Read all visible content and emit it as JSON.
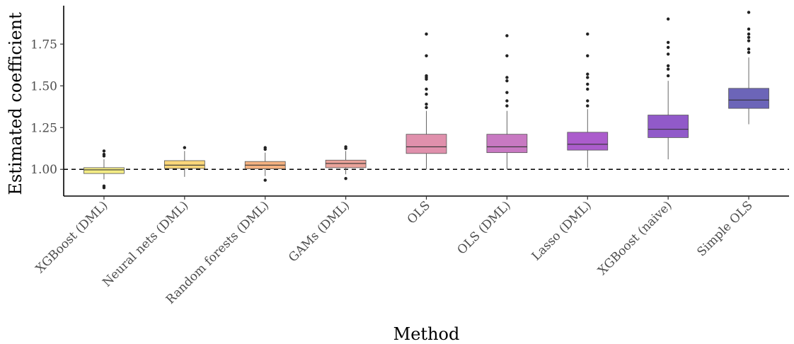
{
  "chart_data": {
    "type": "boxplot",
    "title": "",
    "xlabel": "Method",
    "ylabel": "Estimated coefficient",
    "ylim": [
      0.84,
      1.98
    ],
    "yticks": [
      1.0,
      1.25,
      1.5,
      1.75
    ],
    "ytick_labels": [
      "1.00",
      "1.25",
      "1.50",
      "1.75"
    ],
    "reference_line": 1.0,
    "categories": [
      "XGBoost (DML)",
      "Neural nets (DML)",
      "Random forests (DML)",
      "GAMs (DML)",
      "OLS",
      "OLS (DML)",
      "Lasso (DML)",
      "XGBoost (naive)",
      "Simple OLS"
    ],
    "boxes": [
      {
        "whisker_low": 0.94,
        "q1": 0.975,
        "median": 0.997,
        "q3": 1.01,
        "whisker_high": 1.06,
        "outliers": [
          1.08,
          1.09,
          1.11,
          0.9,
          0.89
        ],
        "color": "#f4ec84"
      },
      {
        "whisker_low": 0.955,
        "q1": 1.005,
        "median": 1.025,
        "q3": 1.052,
        "whisker_high": 1.11,
        "outliers": [
          1.13
        ],
        "color": "#fbd77a"
      },
      {
        "whisker_low": 0.96,
        "q1": 1.003,
        "median": 1.025,
        "q3": 1.047,
        "whisker_high": 1.1,
        "outliers": [
          1.12,
          1.13,
          0.935
        ],
        "color": "#f5b281"
      },
      {
        "whisker_low": 0.97,
        "q1": 1.01,
        "median": 1.035,
        "q3": 1.055,
        "whisker_high": 1.11,
        "outliers": [
          1.125,
          1.135,
          0.945
        ],
        "color": "#eba39a"
      },
      {
        "whisker_low": 1.0,
        "q1": 1.095,
        "median": 1.135,
        "q3": 1.21,
        "whisker_high": 1.35,
        "outliers": [
          1.37,
          1.39,
          1.45,
          1.48,
          1.54,
          1.55,
          1.56,
          1.68,
          1.81
        ],
        "color": "#e090ac"
      },
      {
        "whisker_low": 1.0,
        "q1": 1.1,
        "median": 1.135,
        "q3": 1.21,
        "whisker_high": 1.35,
        "outliers": [
          1.38,
          1.41,
          1.46,
          1.53,
          1.55,
          1.68,
          1.8
        ],
        "color": "#c879c2"
      },
      {
        "whisker_low": 1.01,
        "q1": 1.115,
        "median": 1.15,
        "q3": 1.222,
        "whisker_high": 1.36,
        "outliers": [
          1.38,
          1.41,
          1.48,
          1.51,
          1.55,
          1.57,
          1.68,
          1.81
        ],
        "color": "#ab5ccc"
      },
      {
        "whisker_low": 1.06,
        "q1": 1.19,
        "median": 1.24,
        "q3": 1.325,
        "whisker_high": 1.53,
        "outliers": [
          1.56,
          1.6,
          1.62,
          1.69,
          1.73,
          1.76,
          1.9
        ],
        "color": "#915ac9"
      },
      {
        "whisker_low": 1.27,
        "q1": 1.365,
        "median": 1.415,
        "q3": 1.485,
        "whisker_high": 1.67,
        "outliers": [
          1.7,
          1.72,
          1.77,
          1.79,
          1.81,
          1.84,
          1.94
        ],
        "color": "#6c65b8"
      }
    ]
  }
}
